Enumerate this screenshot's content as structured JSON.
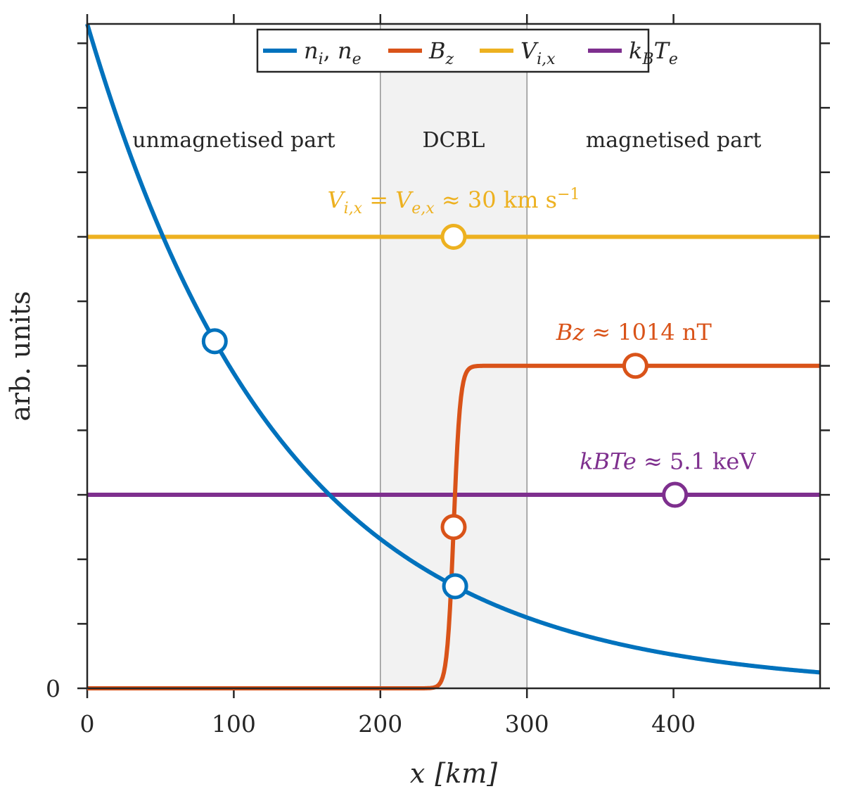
{
  "chart_data": {
    "type": "line",
    "xlabel": "x",
    "xlabel_unit": "[km]",
    "ylabel": "arb. units",
    "xlim": [
      0,
      500
    ],
    "ylim": [
      0,
      10.3
    ],
    "x_ticks": [
      0,
      100,
      200,
      300,
      400
    ],
    "x_tick_labels": [
      "0",
      "100",
      "200",
      "300",
      "400"
    ],
    "y_ticks": [
      0,
      1,
      2,
      3,
      4,
      5,
      6,
      7,
      8,
      9,
      10
    ],
    "y_tick_labels": [
      "0"
    ],
    "shaded_region": {
      "x_start": 200,
      "x_end": 300,
      "color": "#f2f2f2"
    },
    "region_labels": [
      {
        "text": "unmagnetised part",
        "x": 100,
        "y": 8.5
      },
      {
        "text": "DCBL",
        "x": 250,
        "y": 8.5
      },
      {
        "text": "magnetised part",
        "x": 400,
        "y": 8.5
      }
    ],
    "legend": {
      "placement": "top-center",
      "entries": [
        {
          "label": "n_i, n_e",
          "color": "#0072BD"
        },
        {
          "label": "B_z",
          "color": "#D95319"
        },
        {
          "label": "V_i,x",
          "color": "#EDB120"
        },
        {
          "label": "k_B T_e",
          "color": "#7E2F8E"
        }
      ]
    },
    "series": [
      {
        "name": "n_i, n_e",
        "color": "#0072BD",
        "form": "exponential",
        "y0": 10.3,
        "scale_km": 134,
        "marker_x": [
          87,
          251
        ]
      },
      {
        "name": "B_z",
        "color": "#D95319",
        "form": "tanh-step",
        "low": 0,
        "high": 5,
        "center_km": 250,
        "width_km": 4.5,
        "marker_x": [
          250,
          374
        ]
      },
      {
        "name": "V_i,x",
        "color": "#EDB120",
        "form": "constant",
        "value": 7,
        "marker_x": [
          250
        ]
      },
      {
        "name": "k_B T_e",
        "color": "#7E2F8E",
        "form": "constant",
        "value": 3,
        "marker_x": [
          401
        ]
      }
    ],
    "annotations": [
      {
        "series": "V_i,x",
        "color": "#EDB120",
        "parts": [
          "V",
          "i,x",
          " = ",
          "V",
          "e,x",
          " ≈ 30 km s",
          "−1"
        ],
        "x": 250,
        "y": 7.45
      },
      {
        "series": "B_z",
        "color": "#D95319",
        "parts": [
          "B",
          "z",
          " ≈ 1014 nT"
        ],
        "x": 373,
        "y": 5.4
      },
      {
        "series": "k_B T_e",
        "color": "#7E2F8E",
        "parts": [
          "k",
          "B",
          "T",
          "e",
          " ≈ 5.1 keV"
        ],
        "x": 396,
        "y": 3.4
      }
    ]
  }
}
